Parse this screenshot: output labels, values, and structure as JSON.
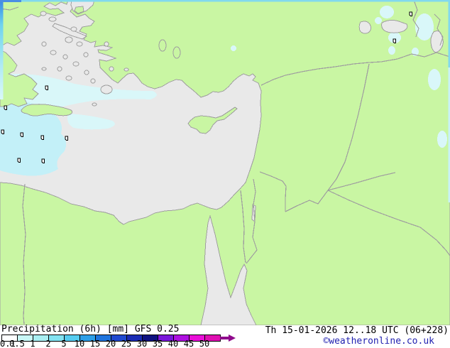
{
  "legend": {
    "title": "Precipitation (6h) [mm] GFS 0.25",
    "ticks": [
      "0.1",
      "0.5",
      "1",
      "2",
      "5",
      "10",
      "15",
      "20",
      "25",
      "30",
      "35",
      "40",
      "45",
      "50"
    ],
    "cell_colors": [
      "#feffff",
      "#c9f8f6",
      "#a9eff2",
      "#83e3f2",
      "#55ccf0",
      "#2d9fe8",
      "#1f74dd",
      "#1f49d0",
      "#1a2bb4",
      "#0e1180",
      "#7a16da",
      "#ae10e0",
      "#e90fd8",
      "#df0fb2"
    ],
    "arrow_color": "#8f0a8c"
  },
  "footer": {
    "datetime": "Th 15-01-2026 12..18 UTC (06+228)",
    "copyright": "©weatheronline.co.uk"
  },
  "map": {
    "colors": {
      "sea": "#e9e9e9",
      "land": "#c9f6a3",
      "border": "#9f9f9f",
      "precip_light": "#d9f7f9",
      "precip_cyan": "#c3f0f8",
      "edge_cyan": "#82d9ee",
      "edge_blue": "#4a8ee4",
      "datetime_text": "#000000",
      "copyright_text": "#2121b0"
    }
  }
}
